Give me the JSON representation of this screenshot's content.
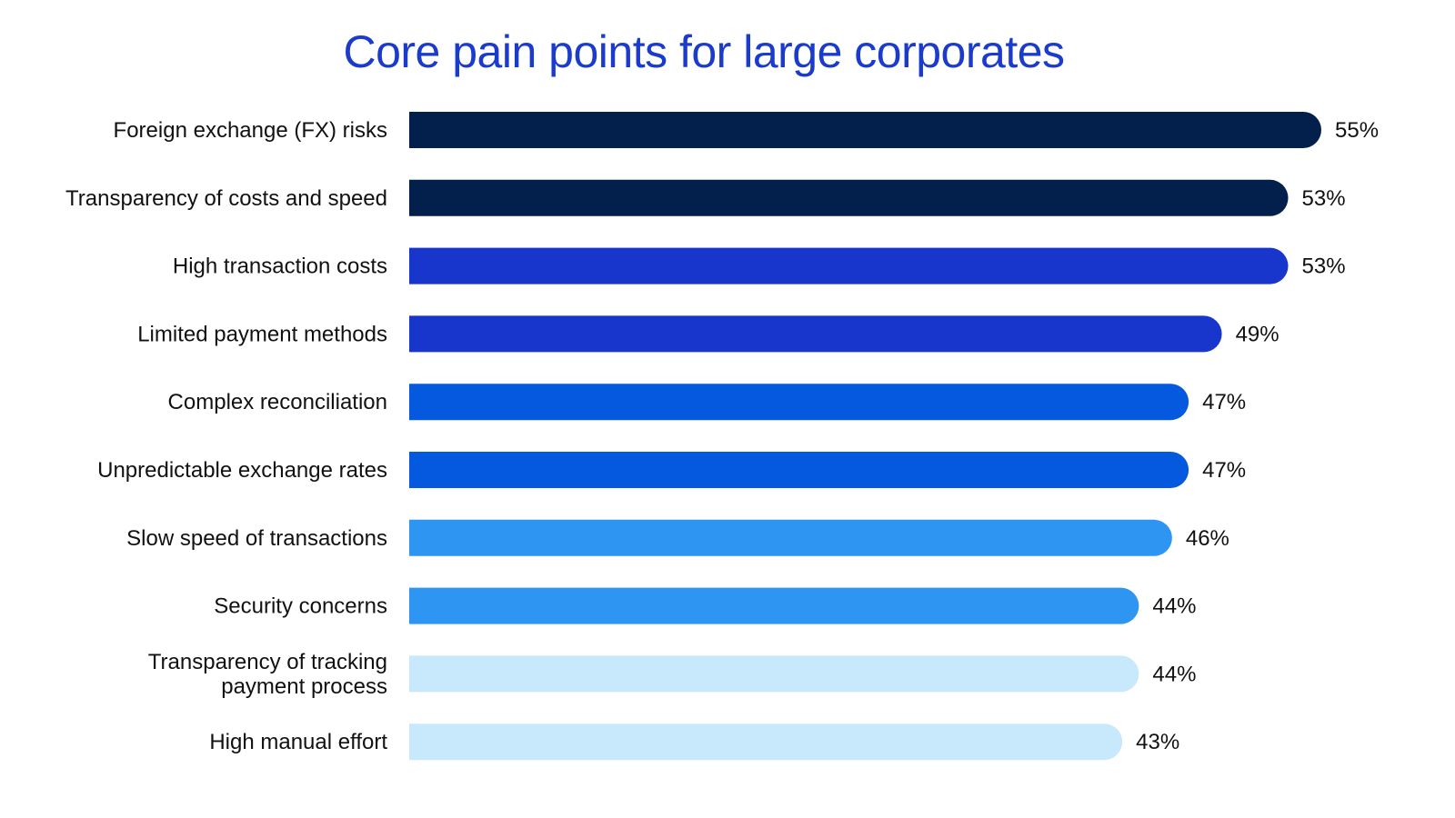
{
  "chart_data": {
    "type": "bar",
    "orientation": "horizontal",
    "title": "Core pain points for large corporates",
    "xlabel": "",
    "ylabel": "",
    "xlim": [
      0,
      55
    ],
    "grid": false,
    "legend": null,
    "value_format": "percent",
    "categories": [
      [
        "Foreign exchange (FX) risks"
      ],
      [
        "Transparency of costs and speed"
      ],
      [
        "High transaction costs"
      ],
      [
        "Limited payment methods"
      ],
      [
        "Complex reconciliation"
      ],
      [
        "Unpredictable exchange rates"
      ],
      [
        "Slow speed of transactions"
      ],
      [
        "Security concerns"
      ],
      [
        "Transparency of tracking",
        "payment process"
      ],
      [
        "High manual effort"
      ]
    ],
    "values": [
      55,
      53,
      53,
      49,
      47,
      47,
      46,
      44,
      44,
      43
    ],
    "data_labels": [
      "55%",
      "53%",
      "53%",
      "49%",
      "47%",
      "47%",
      "46%",
      "44%",
      "44%",
      "43%"
    ],
    "bar_colors": [
      "#031f4b",
      "#031f4b",
      "#1835cc",
      "#1835cc",
      "#0459df",
      "#0459df",
      "#2f95f3",
      "#2f95f3",
      "#c7e9fb",
      "#c7e9fb"
    ]
  },
  "colors": {
    "title": "#1a3bcc",
    "text": "#111111"
  }
}
